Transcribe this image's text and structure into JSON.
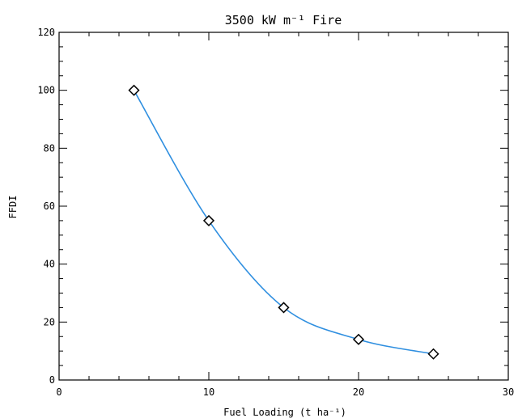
{
  "chart_data": {
    "type": "line",
    "title": "3500 kW m⁻¹ Fire",
    "xlabel": "Fuel Loading (t ha⁻¹)",
    "ylabel": "FFDI",
    "xlim": [
      0,
      30
    ],
    "ylim": [
      0,
      120
    ],
    "xticks": [
      "0",
      "10",
      "20",
      "30"
    ],
    "yticks": [
      "0",
      "20",
      "40",
      "60",
      "80",
      "100",
      "120"
    ],
    "grid": false,
    "legend": "none",
    "line_color": "#2f8fe0",
    "marker": "diamond",
    "x": [
      5,
      10,
      15,
      20,
      25
    ],
    "y": [
      100,
      55,
      25,
      14,
      9
    ]
  }
}
